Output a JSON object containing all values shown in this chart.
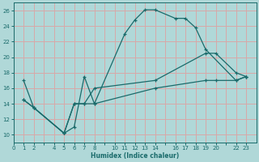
{
  "xlabel": "Humidex (Indice chaleur)",
  "xlim": [
    0,
    24
  ],
  "ylim": [
    9,
    27
  ],
  "yticks": [
    10,
    12,
    14,
    16,
    18,
    20,
    22,
    24,
    26
  ],
  "xtick_labels": [
    "0",
    "1",
    "2",
    "",
    "4",
    "5",
    "6",
    "7",
    "8",
    "",
    "10",
    "11",
    "12",
    "13",
    "14",
    "",
    "16",
    "17",
    "18",
    "19",
    "20",
    "",
    "22",
    "23"
  ],
  "xtick_positions": [
    0,
    1,
    2,
    3,
    4,
    5,
    6,
    7,
    8,
    9,
    10,
    11,
    12,
    13,
    14,
    15,
    16,
    17,
    18,
    19,
    20,
    21,
    22,
    23
  ],
  "bg_color": "#b0d8d8",
  "grid_color": "#d8a8a8",
  "line_color": "#1a6b6b",
  "line1_x": [
    1,
    2,
    5,
    5,
    6,
    7,
    8,
    11,
    12,
    13,
    14,
    16,
    17,
    18,
    19,
    22,
    23
  ],
  "line1_y": [
    17,
    13.5,
    10.2,
    10.2,
    11,
    17.5,
    14,
    23,
    24.8,
    26.1,
    26.1,
    25.0,
    25.0,
    23.8,
    21,
    17,
    17.5
  ],
  "line2_x": [
    1,
    2,
    5,
    6,
    7,
    8,
    14,
    19,
    20,
    22,
    23
  ],
  "line2_y": [
    14.5,
    13.5,
    10.2,
    14,
    14,
    16,
    17,
    20.5,
    20.5,
    18,
    17.5
  ],
  "line3_x": [
    1,
    2,
    5,
    6,
    7,
    8,
    14,
    19,
    20,
    22,
    23
  ],
  "line3_y": [
    14.5,
    13.5,
    10.2,
    14,
    14,
    14,
    16,
    17,
    17,
    17,
    17.5
  ]
}
